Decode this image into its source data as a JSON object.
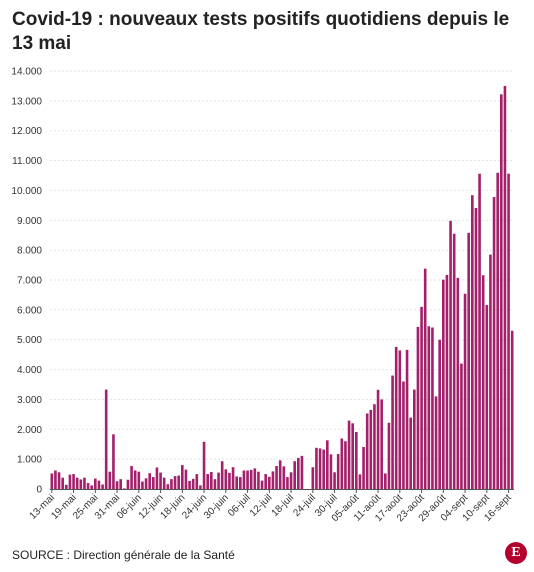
{
  "title": "Covid-19 : nouveaux tests positifs quotidiens depuis le 13 mai",
  "source": "SOURCE : Direction générale de la Santé",
  "logo_letter": "E",
  "colors": {
    "bar": "#a3216b",
    "grid": "#e3e3e3",
    "axis": "#555555",
    "logo": "#b4002c"
  },
  "chart_data": {
    "type": "bar",
    "title": "Covid-19 : nouveaux tests positifs quotidiens depuis le 13 mai",
    "xlabel": "",
    "ylabel": "",
    "ylim": [
      0,
      14000
    ],
    "grid": true,
    "yticks": [
      0,
      1000,
      2000,
      3000,
      4000,
      5000,
      6000,
      7000,
      8000,
      9000,
      10000,
      11000,
      12000,
      13000,
      14000
    ],
    "ytick_labels": [
      "0",
      "1.000",
      "2.000",
      "3.000",
      "4.000",
      "5.000",
      "6.000",
      "7.000",
      "8.000",
      "9.000",
      "10.000",
      "11.000",
      "12.000",
      "13.000",
      "14.000"
    ],
    "xtick_labels": [
      "13-mai",
      "19-mai",
      "25-mai",
      "31-mai",
      "06-juin",
      "12-juin",
      "18-juin",
      "24-juin",
      "30-juin",
      "06-juil",
      "12-juil",
      "18-juil",
      "24-juil",
      "30-juil",
      "05-août",
      "11-août",
      "17-août",
      "23-août",
      "29-août",
      "04-sept",
      "10-sept",
      "16-sept"
    ],
    "start_date": "13-mai",
    "values": [
      520,
      620,
      560,
      380,
      140,
      480,
      500,
      380,
      320,
      380,
      200,
      120,
      350,
      280,
      150,
      3330,
      580,
      1830,
      260,
      330,
      20,
      310,
      770,
      620,
      580,
      250,
      360,
      530,
      400,
      720,
      550,
      380,
      160,
      330,
      430,
      450,
      800,
      650,
      270,
      340,
      500,
      120,
      1580,
      500,
      570,
      330,
      550,
      930,
      660,
      540,
      730,
      420,
      400,
      620,
      620,
      640,
      690,
      580,
      280,
      500,
      410,
      590,
      770,
      960,
      760,
      400,
      560,
      930,
      1040,
      1110,
      0,
      0,
      730,
      1380,
      1360,
      1320,
      1630,
      1160,
      560,
      1170,
      1690,
      1600,
      2290,
      2200,
      1910,
      490,
      1410,
      2530,
      2650,
      2840,
      3320,
      3000,
      520,
      2220,
      3800,
      4760,
      4640,
      3600,
      4660,
      2390,
      3330,
      5430,
      6100,
      7380,
      5450,
      5410,
      3100,
      5000,
      7010,
      7170,
      8980,
      8550,
      7070,
      4200,
      6540,
      8580,
      9840,
      9410,
      10560,
      7160,
      6160,
      7850,
      9780,
      10590,
      13220,
      13500,
      10560,
      5300
    ]
  }
}
